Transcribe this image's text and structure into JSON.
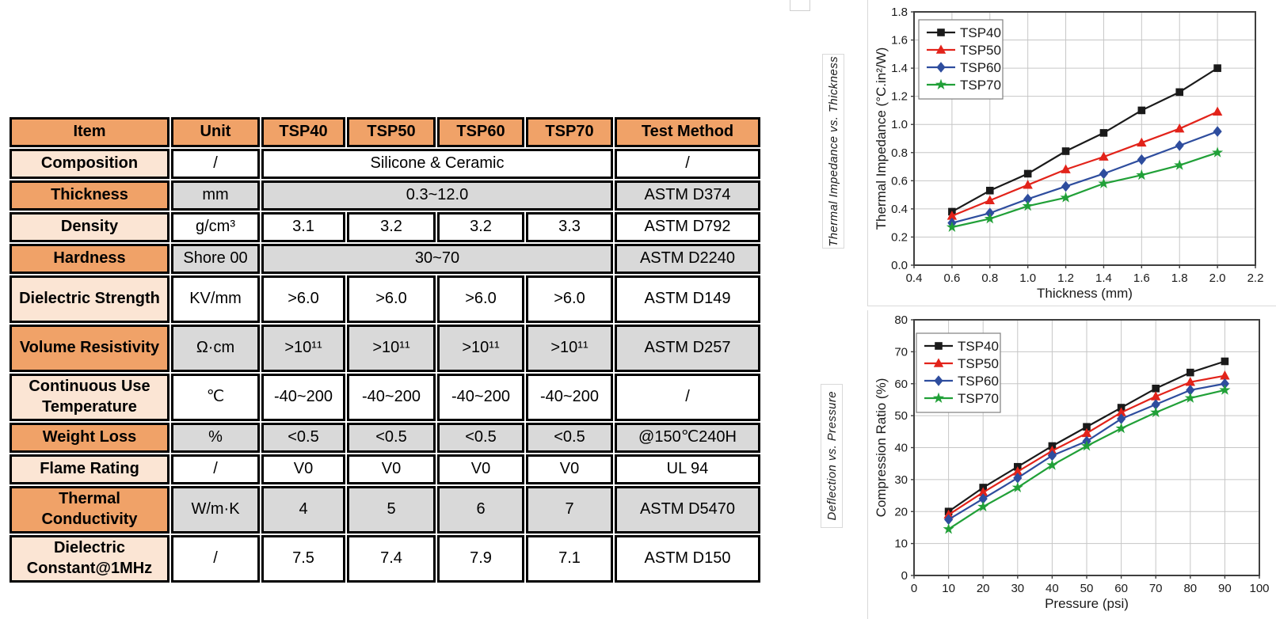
{
  "page": {
    "background": "#ffffff"
  },
  "colors": {
    "header_orange": "#f0a268",
    "item_peach": "#fbe5d4",
    "cell_grey": "#d9d9d9",
    "table_border": "#000000",
    "tsp40_black": "#1a1a1a",
    "tsp50_red": "#e2231a",
    "tsp60_blue": "#2e4d9e",
    "tsp70_green": "#21a038",
    "gridline": "#c6c6c6",
    "plot_frame": "#3f3f3f"
  },
  "table": {
    "columns": [
      "Item",
      "Unit",
      "TSP40",
      "TSP50",
      "TSP60",
      "TSP70",
      "Test Method"
    ],
    "rows": [
      {
        "item": "Composition",
        "unit": "/",
        "values": [
          "Silicone & Ceramic"
        ],
        "test": "/",
        "shade": false
      },
      {
        "item": "Thickness",
        "unit": "mm",
        "values": [
          "0.3~12.0"
        ],
        "test": "ASTM D374",
        "shade": true
      },
      {
        "item": "Density",
        "unit": "g/cm³",
        "values": [
          "3.1",
          "3.2",
          "3.2",
          "3.3"
        ],
        "test": "ASTM D792",
        "shade": false
      },
      {
        "item": "Hardness",
        "unit": "Shore 00",
        "values": [
          "30~70"
        ],
        "test": "ASTM D2240",
        "shade": true
      },
      {
        "item": "Dielectric Strength",
        "unit": "KV/mm",
        "values": [
          ">6.0",
          ">6.0",
          ">6.0",
          ">6.0"
        ],
        "test": "ASTM D149",
        "shade": false
      },
      {
        "item": "Volume Resistivity",
        "unit": "Ω·cm",
        "values": [
          ">10¹¹",
          ">10¹¹",
          ">10¹¹",
          ">10¹¹"
        ],
        "test": "ASTM D257",
        "shade": true
      },
      {
        "item": "Continuous Use Temperature",
        "unit": "℃",
        "values": [
          "-40~200",
          "-40~200",
          "-40~200",
          "-40~200"
        ],
        "test": "/",
        "shade": false
      },
      {
        "item": "Weight Loss",
        "unit": "%",
        "values": [
          "<0.5",
          "<0.5",
          "<0.5",
          "<0.5"
        ],
        "test": "@150℃240H",
        "shade": true
      },
      {
        "item": "Flame Rating",
        "unit": "/",
        "values": [
          "V0",
          "V0",
          "V0",
          "V0"
        ],
        "test": "UL 94",
        "shade": false
      },
      {
        "item": "Thermal Conductivity",
        "unit": "W/m·K",
        "values": [
          "4",
          "5",
          "6",
          "7"
        ],
        "test": "ASTM D5470",
        "shade": true
      },
      {
        "item": "Dielectric Constant@1MHz",
        "unit": "/",
        "values": [
          "7.5",
          "7.4",
          "7.9",
          "7.1"
        ],
        "test": "ASTM D150",
        "shade": false
      }
    ]
  },
  "chart_data": [
    {
      "type": "line",
      "title": "Thermal Impedance vs. Thickness",
      "xlabel": "Thickness (mm)",
      "ylabel": "Thermal Impedance (°C.in²/W)",
      "xlim": [
        0.4,
        2.2
      ],
      "xstep": 0.2,
      "x_decimals": 1,
      "ylim": [
        0.0,
        1.8
      ],
      "ystep": 0.2,
      "y_decimals": 1,
      "grid": true,
      "legend_position": "top-left",
      "x": [
        0.6,
        0.8,
        1.0,
        1.2,
        1.4,
        1.6,
        1.8,
        2.0
      ],
      "series": [
        {
          "name": "TSP40",
          "color": "#1a1a1a",
          "marker": "square",
          "values": [
            0.38,
            0.53,
            0.65,
            0.81,
            0.94,
            1.1,
            1.23,
            1.4
          ]
        },
        {
          "name": "TSP50",
          "color": "#e2231a",
          "marker": "triangle",
          "values": [
            0.35,
            0.46,
            0.57,
            0.68,
            0.77,
            0.87,
            0.97,
            1.09
          ]
        },
        {
          "name": "TSP60",
          "color": "#2e4d9e",
          "marker": "diamond",
          "values": [
            0.3,
            0.37,
            0.47,
            0.56,
            0.65,
            0.75,
            0.85,
            0.95
          ]
        },
        {
          "name": "TSP70",
          "color": "#21a038",
          "marker": "star",
          "values": [
            0.27,
            0.33,
            0.42,
            0.48,
            0.58,
            0.64,
            0.71,
            0.8
          ]
        }
      ]
    },
    {
      "type": "line",
      "title": "Deflection vs. Pressure",
      "xlabel": "Pressure (psi)",
      "ylabel": "Compression Ratio (%)",
      "xlim": [
        0,
        100
      ],
      "xstep": 10,
      "x_decimals": 0,
      "ylim": [
        0,
        80
      ],
      "ystep": 10,
      "y_decimals": 0,
      "grid": true,
      "legend_position": "top-left",
      "x": [
        10,
        20,
        30,
        40,
        50,
        60,
        70,
        80,
        90
      ],
      "series": [
        {
          "name": "TSP40",
          "color": "#1a1a1a",
          "marker": "square",
          "values": [
            20.0,
            27.5,
            34.0,
            40.5,
            46.5,
            52.5,
            58.5,
            63.5,
            67.0
          ]
        },
        {
          "name": "TSP50",
          "color": "#e2231a",
          "marker": "triangle",
          "values": [
            19.0,
            26.0,
            32.5,
            39.0,
            44.5,
            51.0,
            56.0,
            60.5,
            62.5
          ]
        },
        {
          "name": "TSP60",
          "color": "#2e4d9e",
          "marker": "diamond",
          "values": [
            17.5,
            24.0,
            30.5,
            37.5,
            42.0,
            49.0,
            53.5,
            58.0,
            60.0
          ]
        },
        {
          "name": "TSP70",
          "color": "#21a038",
          "marker": "star",
          "values": [
            14.5,
            21.5,
            27.5,
            34.5,
            40.5,
            46.0,
            51.0,
            55.5,
            58.0
          ]
        }
      ]
    }
  ]
}
